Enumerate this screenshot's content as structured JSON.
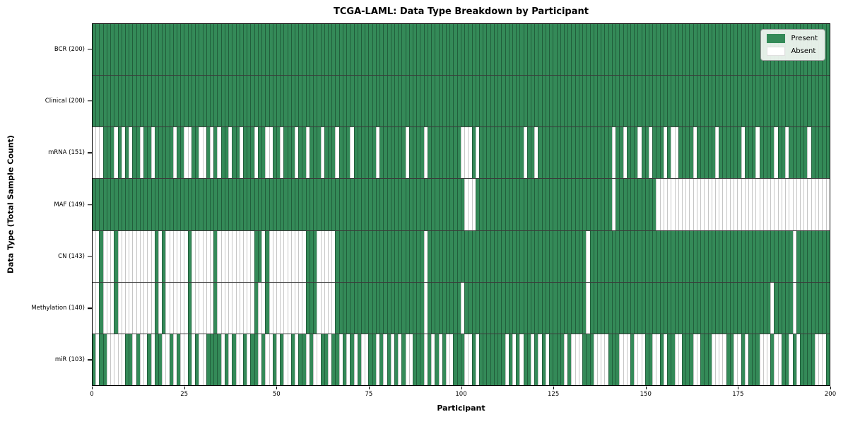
{
  "chart": {
    "title": "TCGA-LAML: Data Type Breakdown by Participant",
    "xlabel": "Participant",
    "ylabel": "Data Type (Total Sample Count)",
    "legend": {
      "present_label": "Present",
      "absent_label": "Absent"
    }
  },
  "chart_data": {
    "type": "heatmap",
    "title": "TCGA-LAML: Data Type Breakdown by Participant",
    "xlabel": "Participant",
    "ylabel": "Data Type (Total Sample Count)",
    "n_participants": 200,
    "x_ticks": [
      0,
      25,
      50,
      75,
      100,
      125,
      150,
      175,
      200
    ],
    "value_encoding": {
      "present": 1,
      "absent": 0
    },
    "legend": [
      {
        "label": "Present",
        "color": "#348a58"
      },
      {
        "label": "Absent",
        "color": "#ffffff"
      }
    ],
    "colors": {
      "present": "#348a58",
      "absent": "#ffffff"
    },
    "grid": true,
    "legend_position": "upper right",
    "rows": [
      {
        "name": "BCR",
        "label": "BCR (200)",
        "present_count": 200,
        "absent_indices": []
      },
      {
        "name": "Clinical",
        "label": "Clinical (200)",
        "present_count": 200,
        "absent_indices": []
      },
      {
        "name": "mRNA",
        "label": "mRNA (151)",
        "present_count": 151,
        "absent_indices": [
          0,
          1,
          2,
          6,
          8,
          10,
          13,
          16,
          22,
          25,
          26,
          29,
          30,
          32,
          34,
          37,
          40,
          44,
          47,
          48,
          51,
          55,
          58,
          62,
          66,
          70,
          77,
          85,
          90,
          100,
          101,
          102,
          104,
          117,
          120,
          141,
          144,
          148,
          151,
          155,
          157,
          158,
          163,
          169,
          176,
          180,
          185,
          188,
          194
        ]
      },
      {
        "name": "MAF",
        "label": "MAF (149)",
        "present_count": 149,
        "absent_indices": [
          101,
          102,
          103,
          141,
          153,
          154,
          155,
          156,
          157,
          158,
          159,
          160,
          161,
          162,
          163,
          164,
          165,
          166,
          167,
          168,
          169,
          170,
          171,
          172,
          173,
          174,
          175,
          176,
          177,
          178,
          179,
          180,
          181,
          182,
          183,
          184,
          185,
          186,
          187,
          188,
          189,
          190,
          191,
          192,
          193,
          194,
          195,
          196,
          197,
          198,
          199
        ]
      },
      {
        "name": "CN",
        "label": "CN (143)",
        "present_count": 143,
        "absent_indices": [
          0,
          1,
          3,
          4,
          5,
          7,
          8,
          9,
          10,
          11,
          12,
          13,
          14,
          15,
          16,
          18,
          20,
          21,
          22,
          23,
          24,
          25,
          27,
          28,
          29,
          30,
          31,
          32,
          34,
          35,
          36,
          37,
          38,
          39,
          40,
          41,
          42,
          43,
          46,
          48,
          49,
          50,
          51,
          52,
          53,
          54,
          55,
          56,
          57,
          61,
          62,
          63,
          64,
          65,
          90,
          134,
          190
        ]
      },
      {
        "name": "Methylation",
        "label": "Methylation (140)",
        "present_count": 140,
        "absent_indices": [
          0,
          1,
          3,
          4,
          5,
          7,
          8,
          9,
          10,
          11,
          12,
          13,
          14,
          15,
          16,
          18,
          20,
          21,
          22,
          23,
          24,
          25,
          27,
          28,
          29,
          30,
          31,
          32,
          34,
          35,
          36,
          37,
          38,
          39,
          40,
          41,
          42,
          43,
          45,
          46,
          48,
          49,
          50,
          51,
          52,
          53,
          54,
          55,
          56,
          57,
          61,
          62,
          63,
          64,
          65,
          90,
          100,
          134,
          184,
          190
        ]
      },
      {
        "name": "miR",
        "label": "miR (103)",
        "present_count": 103,
        "absent_indices": [
          1,
          4,
          5,
          6,
          7,
          8,
          11,
          13,
          14,
          16,
          19,
          20,
          22,
          24,
          25,
          27,
          29,
          30,
          35,
          37,
          39,
          40,
          42,
          45,
          47,
          48,
          50,
          52,
          53,
          55,
          58,
          60,
          61,
          64,
          67,
          69,
          71,
          73,
          74,
          77,
          79,
          81,
          83,
          85,
          86,
          90,
          92,
          94,
          96,
          97,
          101,
          102,
          104,
          112,
          114,
          116,
          119,
          121,
          123,
          128,
          130,
          131,
          132,
          136,
          137,
          138,
          139,
          143,
          144,
          145,
          147,
          148,
          149,
          152,
          153,
          155,
          158,
          159,
          163,
          164,
          168,
          169,
          170,
          171,
          174,
          175,
          177,
          181,
          182,
          183,
          185,
          186,
          189,
          191,
          196,
          197,
          198
        ]
      }
    ]
  }
}
